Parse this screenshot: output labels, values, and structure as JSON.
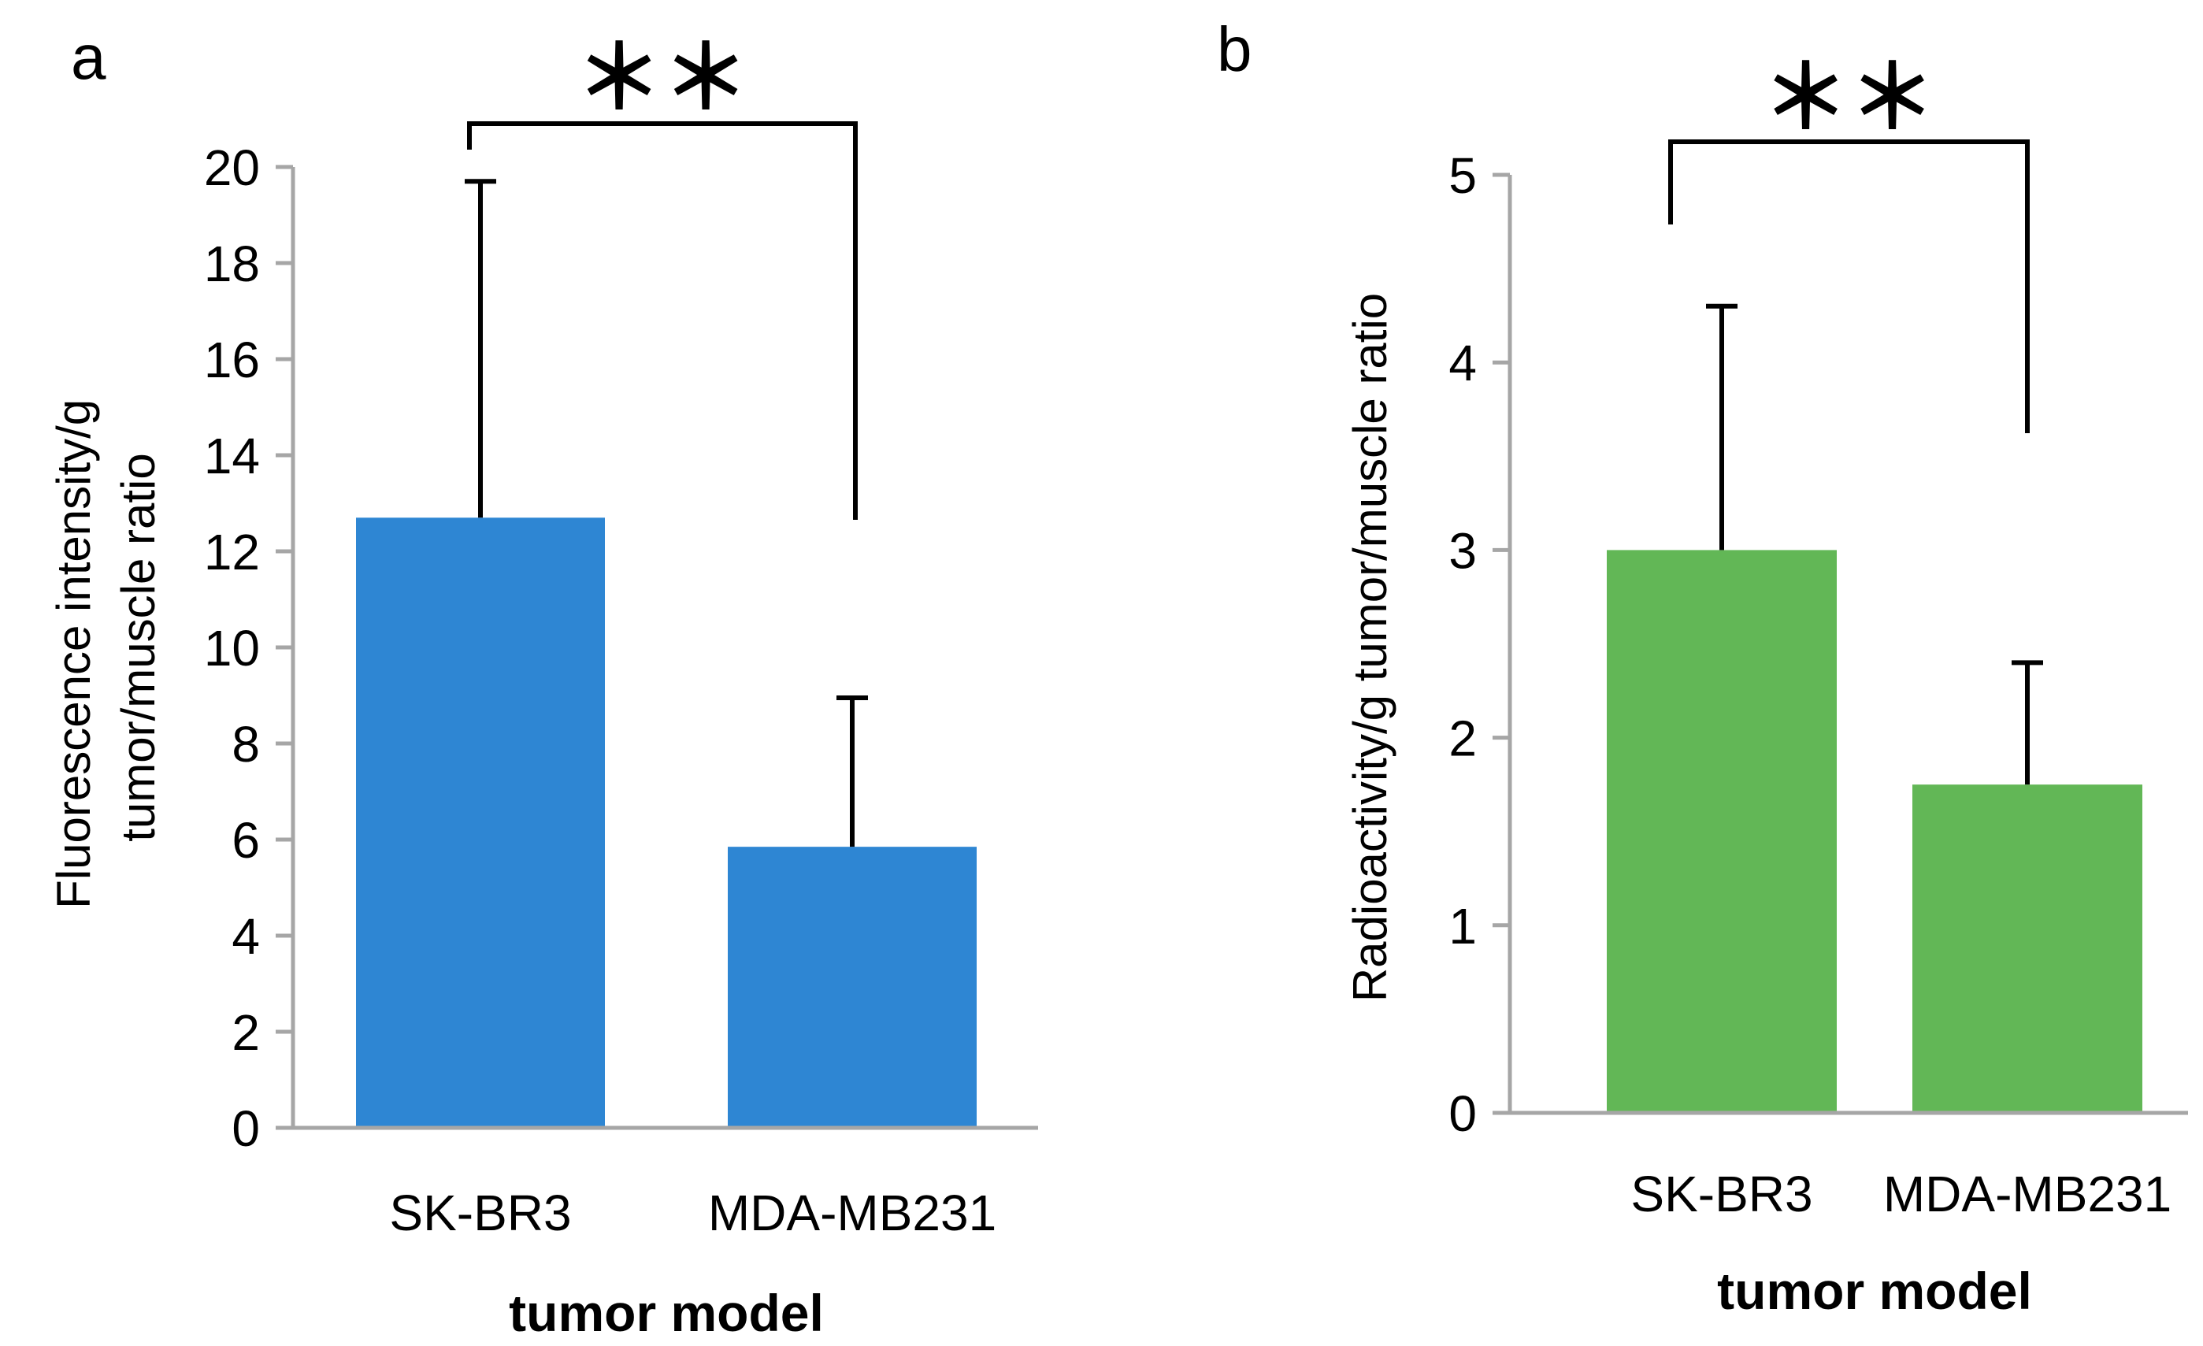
{
  "chart_data": [
    {
      "type": "bar",
      "panel": "a",
      "categories": [
        "SK-BR3",
        "MDA-MB231"
      ],
      "values": [
        12.7,
        5.85
      ],
      "errors": [
        7.0,
        3.1
      ],
      "xlabel": "tumor model",
      "ylabel_lines": [
        "Fluorescence intensity/g",
        "tumor/muscle ratio"
      ],
      "ylim": [
        0,
        20
      ],
      "yticks": [
        0,
        2,
        4,
        6,
        8,
        10,
        12,
        14,
        16,
        18,
        20
      ],
      "color": "#2e86d3",
      "significance": "＊＊",
      "grid": false
    },
    {
      "type": "bar",
      "panel": "b",
      "categories": [
        "SK-BR3",
        "MDA-MB231"
      ],
      "values": [
        3.0,
        1.75
      ],
      "errors": [
        1.3,
        0.65
      ],
      "xlabel": "tumor model",
      "ylabel_lines": [
        "Radioactivity/g tumor/muscle ratio"
      ],
      "ylim": [
        0,
        5
      ],
      "yticks": [
        0,
        1,
        2,
        3,
        4,
        5
      ],
      "color": "#62b756",
      "significance": "＊＊",
      "grid": false
    }
  ]
}
